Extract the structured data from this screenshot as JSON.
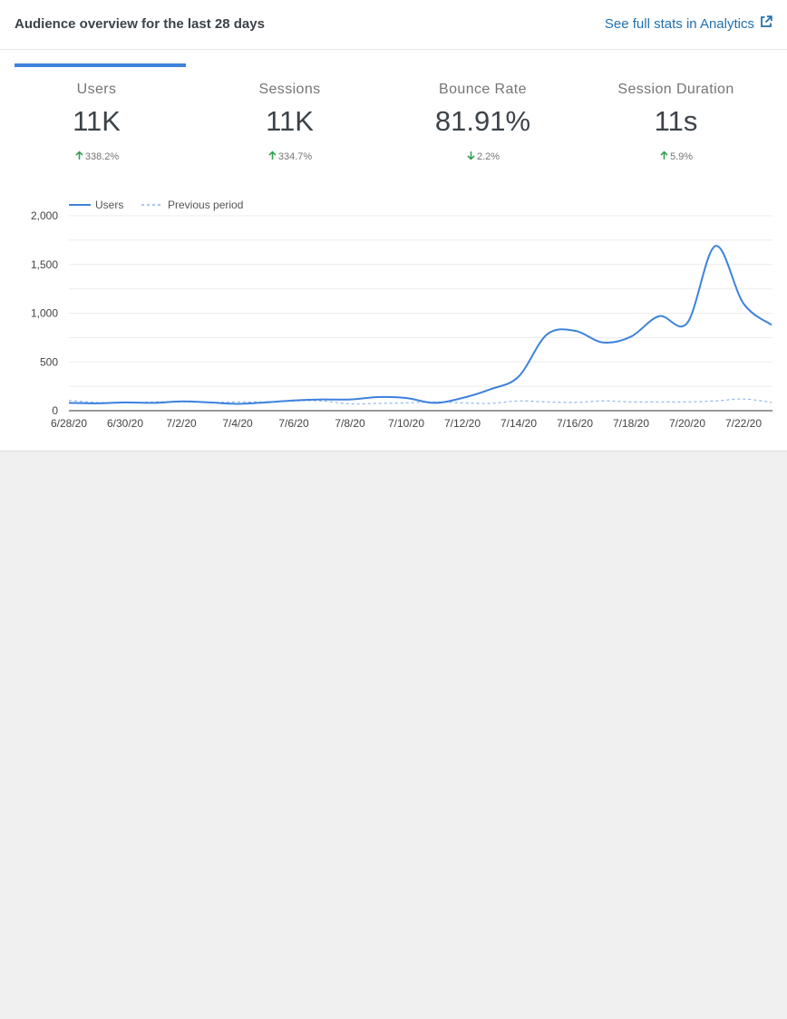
{
  "header": {
    "title": "Audience overview for the last 28 days",
    "analytics_link": "See full stats in Analytics",
    "link_icon": "external-link-icon"
  },
  "tabs": [
    {
      "label": "Users",
      "value": "11K",
      "delta": "338.2%",
      "direction": "up",
      "active": true
    },
    {
      "label": "Sessions",
      "value": "11K",
      "delta": "334.7%",
      "direction": "up",
      "active": false
    },
    {
      "label": "Bounce Rate",
      "value": "81.91%",
      "delta": "2.2%",
      "direction": "down",
      "active": false
    },
    {
      "label": "Session Duration",
      "value": "11s",
      "delta": "5.9%",
      "direction": "up",
      "active": false
    }
  ],
  "colors": {
    "accent": "#3d82dd",
    "link": "#2271b1",
    "delta_positive": "#2e9e4f"
  },
  "chart_data": {
    "type": "line",
    "x": [
      "6/28/20",
      "6/29/20",
      "6/30/20",
      "7/1/20",
      "7/2/20",
      "7/3/20",
      "7/4/20",
      "7/5/20",
      "7/6/20",
      "7/7/20",
      "7/8/20",
      "7/9/20",
      "7/10/20",
      "7/11/20",
      "7/12/20",
      "7/13/20",
      "7/14/20",
      "7/15/20",
      "7/16/20",
      "7/17/20",
      "7/18/20",
      "7/19/20",
      "7/20/20",
      "7/21/20",
      "7/22/20",
      "7/23/20"
    ],
    "tick_labels": [
      "6/28/20",
      "6/30/20",
      "7/2/20",
      "7/4/20",
      "7/6/20",
      "7/8/20",
      "7/10/20",
      "7/12/20",
      "7/14/20",
      "7/16/20",
      "7/18/20",
      "7/20/20",
      "7/22/20"
    ],
    "series": [
      {
        "name": "Users",
        "style": "solid",
        "color": "#3d82dd",
        "values": [
          80,
          75,
          85,
          80,
          95,
          85,
          70,
          85,
          105,
          115,
          115,
          140,
          130,
          80,
          130,
          220,
          350,
          780,
          820,
          700,
          760,
          970,
          900,
          1690,
          1100,
          880
        ]
      },
      {
        "name": "Previous period",
        "style": "dashed",
        "color": "#8fb6ec",
        "values": [
          105,
          85,
          80,
          90,
          90,
          85,
          90,
          90,
          100,
          100,
          70,
          75,
          80,
          90,
          80,
          75,
          100,
          90,
          85,
          100,
          90,
          90,
          90,
          100,
          120,
          85
        ]
      }
    ],
    "y_ticks": [
      "0",
      "500",
      "1,000",
      "1,500",
      "2,000"
    ],
    "ylim": [
      0,
      2000
    ],
    "legend_position": "top-left",
    "grid": true
  }
}
